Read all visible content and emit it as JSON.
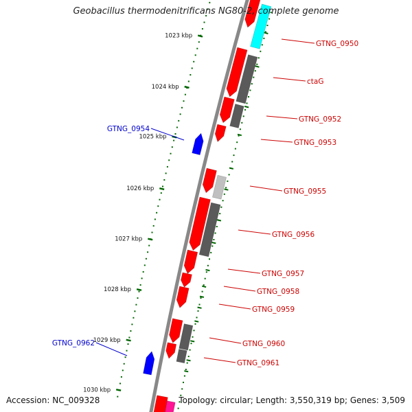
{
  "title": "Geobacillus thermodenitrificans NG80-2, complete genome",
  "footer": {
    "accession_label": "Accession:",
    "accession": "NC_009328",
    "topology_label": "Topology:",
    "topology": "circular",
    "length_label": "Length:",
    "length": "3,550,319 bp",
    "genes_label": "Genes:",
    "genes": "3,509"
  },
  "colors": {
    "backbone": "#888888",
    "forward_cds": "#ff0000",
    "reverse_cds": "#0000ff",
    "pseudo": "#ff1493",
    "rna": "#00ffff",
    "ortholog_dark": "#5a5a5a",
    "ortholog_light": "#c0c0c0",
    "ticks": "#006600",
    "label_forward": "#cc0000",
    "label_reverse": "#0000cc"
  },
  "scale_ticks": [
    {
      "label": "1023 kbp"
    },
    {
      "label": "1024 kbp"
    },
    {
      "label": "1025 kbp"
    },
    {
      "label": "1026 kbp"
    },
    {
      "label": "1027 kbp"
    },
    {
      "label": "1028 kbp"
    },
    {
      "label": "1029 kbp"
    },
    {
      "label": "1030 kbp"
    }
  ],
  "gene_labels": [
    {
      "name": "GTNG_0950",
      "strand": "forward"
    },
    {
      "name": "ctaG",
      "strand": "forward"
    },
    {
      "name": "GTNG_0952",
      "strand": "forward"
    },
    {
      "name": "GTNG_0953",
      "strand": "forward"
    },
    {
      "name": "GTNG_0954",
      "strand": "reverse"
    },
    {
      "name": "GTNG_0955",
      "strand": "forward"
    },
    {
      "name": "GTNG_0956",
      "strand": "forward"
    },
    {
      "name": "GTNG_0957",
      "strand": "forward"
    },
    {
      "name": "GTNG_0958",
      "strand": "forward"
    },
    {
      "name": "GTNG_0959",
      "strand": "forward"
    },
    {
      "name": "GTNG_0960",
      "strand": "forward"
    },
    {
      "name": "GTNG_0961",
      "strand": "forward"
    },
    {
      "name": "GTNG_0962",
      "strand": "reverse"
    }
  ]
}
